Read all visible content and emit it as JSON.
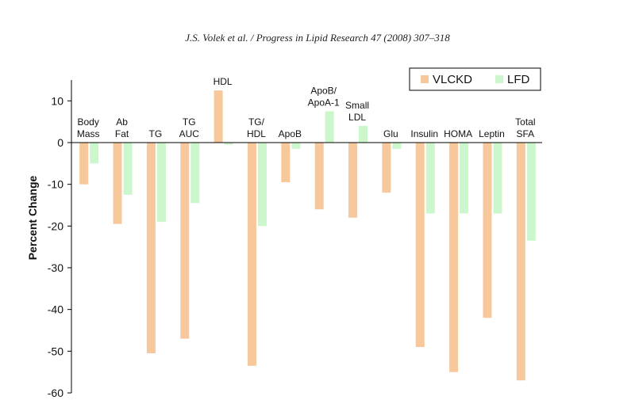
{
  "citation": "J.S. Volek et al. / Progress in Lipid Research 47 (2008) 307–318",
  "chart_data": {
    "type": "bar",
    "ylabel": "Percent Change",
    "xlabel": "",
    "ylim": [
      -60,
      15
    ],
    "yticks": [
      10,
      0,
      -10,
      -20,
      -30,
      -40,
      -50,
      -60
    ],
    "legend_position": "top-right",
    "categories": [
      [
        "Body",
        "Mass"
      ],
      [
        "Ab",
        "Fat"
      ],
      [
        "TG"
      ],
      [
        "TG",
        "AUC"
      ],
      [
        "HDL"
      ],
      [
        "TG/",
        "HDL"
      ],
      [
        "ApoB"
      ],
      [
        "ApoB/",
        "ApoA-1"
      ],
      [
        "Small",
        "LDL"
      ],
      [
        "Glu"
      ],
      [
        "Insulin"
      ],
      [
        "HOMA"
      ],
      [
        "Leptin"
      ],
      [
        "Total",
        "SFA"
      ]
    ],
    "series": [
      {
        "name": "VLCKD",
        "color": "#f7c89b",
        "values": [
          -10,
          -19.5,
          -50.5,
          -47,
          12.5,
          -53.5,
          -9.5,
          -16,
          -18,
          -12,
          -49,
          -55,
          -42,
          -57
        ]
      },
      {
        "name": "LFD",
        "color": "#ccf7cc",
        "values": [
          -5,
          -12.5,
          -19,
          -14.5,
          -0.5,
          -20,
          -1.5,
          7.5,
          4,
          -1.5,
          -17,
          -17,
          -17,
          -23.5
        ]
      }
    ]
  }
}
